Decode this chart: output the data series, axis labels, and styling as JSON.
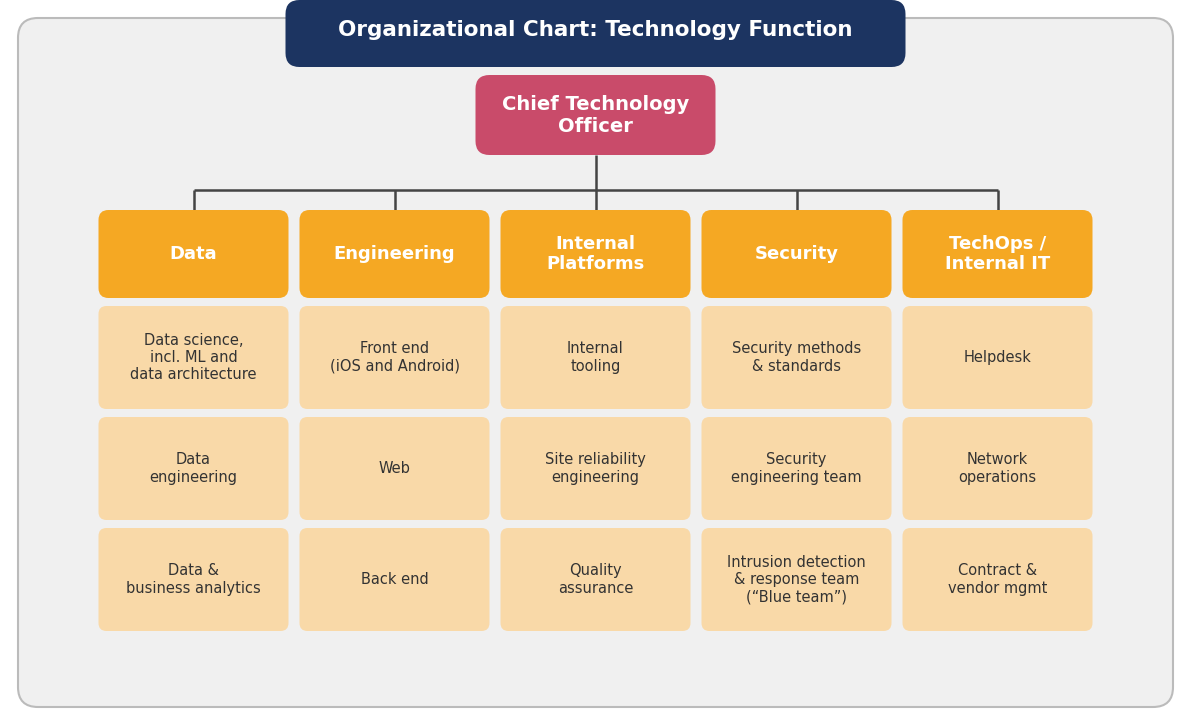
{
  "title": "Organizational Chart: Technology Function",
  "title_bg": "#1c3461",
  "title_color": "#ffffff",
  "bg_color": "#f0f0f0",
  "outer_bg": "#ffffff",
  "cto_label": "Chief Technology\nOfficer",
  "cto_bg": "#c94b6a",
  "cto_text_color": "#ffffff",
  "dept_bg": "#f5a823",
  "dept_text_color": "#ffffff",
  "sub_bg": "#f9d9a8",
  "sub_text_color": "#333333",
  "departments": [
    "Data",
    "Engineering",
    "Internal\nPlatforms",
    "Security",
    "TechOps /\nInternal IT"
  ],
  "sub_items": [
    [
      "Data science,\nincl. ML and\ndata architecture",
      "Data\nengineering",
      "Data &\nbusiness analytics"
    ],
    [
      "Front end\n(iOS and Android)",
      "Web",
      "Back end"
    ],
    [
      "Internal\ntooling",
      "Site reliability\nengineering",
      "Quality\nassurance"
    ],
    [
      "Security methods\n& standards",
      "Security\nengineering team",
      "Intrusion detection\n& response team\n(“Blue team”)"
    ],
    [
      "Helpdesk",
      "Network\noperations",
      "Contract &\nvendor mgmt"
    ]
  ],
  "line_color": "#444444",
  "border_color": "#bbbbbb",
  "fig_width": 11.91,
  "fig_height": 7.25,
  "dpi": 100
}
